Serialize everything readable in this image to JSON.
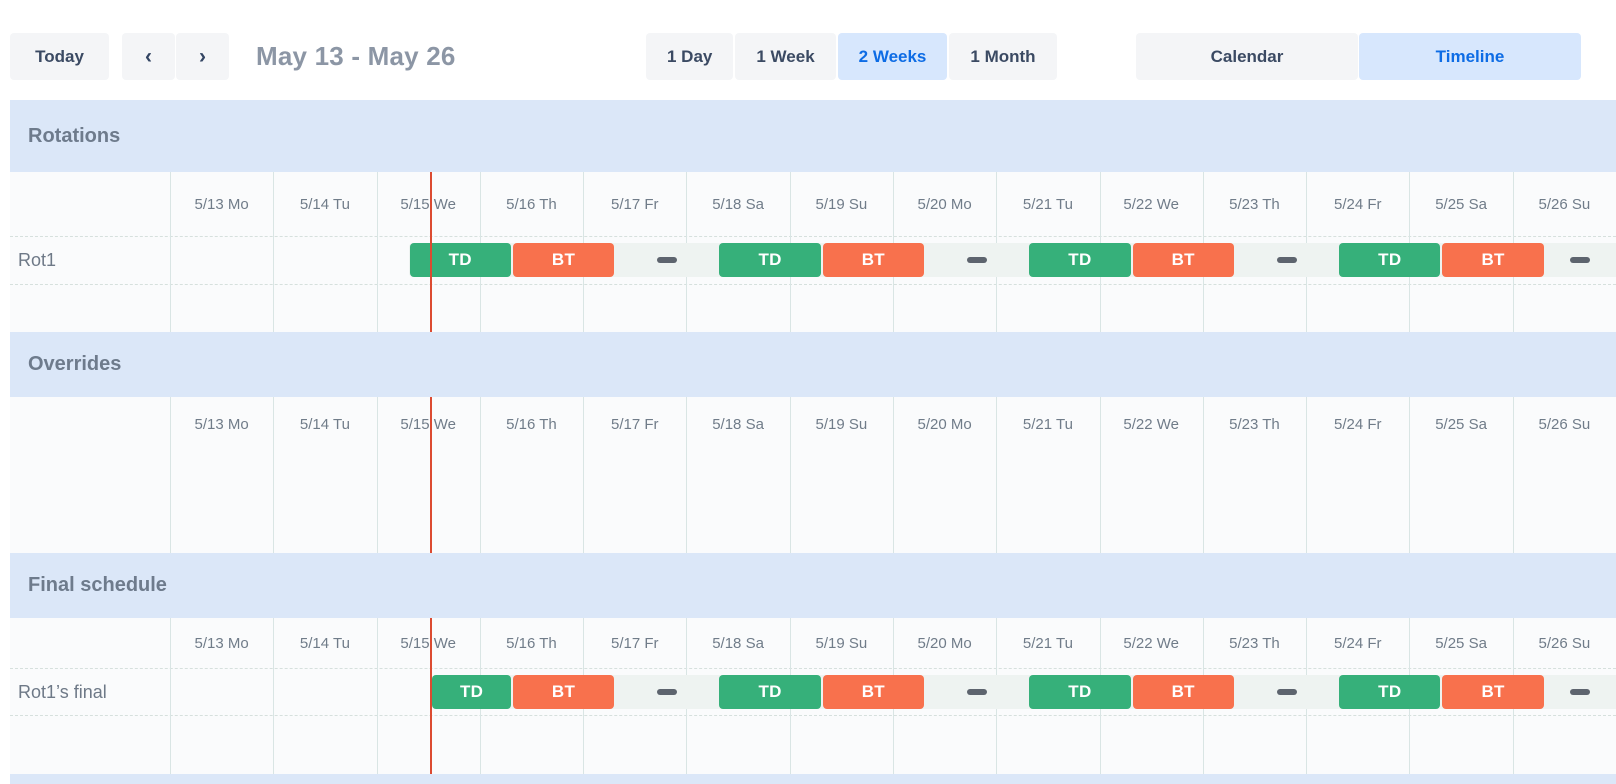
{
  "toolbar": {
    "today": "Today",
    "prev_icon": "‹",
    "next_icon": "›",
    "title": "May 13 - May 26",
    "zoom_options": [
      {
        "label": "1 Day",
        "selected": false
      },
      {
        "label": "1 Week",
        "selected": false
      },
      {
        "label": "2 Weeks",
        "selected": true
      },
      {
        "label": "1 Month",
        "selected": false
      }
    ],
    "view_options": [
      {
        "label": "Calendar",
        "selected": false
      },
      {
        "label": "Timeline",
        "selected": true
      }
    ]
  },
  "colors": {
    "accent_blue": "#0d6ce5",
    "selected_bg": "#d7e7fd",
    "button_bg": "#f4f5f7",
    "button_text": "#3b4a63",
    "section_band": "#dbe7f8",
    "shift_green": "#36b07a",
    "shift_orange": "#f8714d",
    "gap_dash": "#5d646e",
    "now_line": "#dc4b31",
    "oncall_strip": "#eef3f1"
  },
  "timeline": {
    "days": [
      "5/13 Mo",
      "5/14 Tu",
      "5/15 We",
      "5/16 Th",
      "5/17 Fr",
      "5/18 Sa",
      "5/19 Su",
      "5/20 Mo",
      "5/21 Tu",
      "5/22 We",
      "5/23 Th",
      "5/24 Fr",
      "5/25 Sa",
      "5/26 Su"
    ],
    "now_day": 2.53,
    "sections": [
      {
        "title": "Rotations",
        "rows": [
          {
            "label": "Rot1",
            "strip_start": 2.31,
            "segments": [
              {
                "type": "shift",
                "label": "TD",
                "color": "green",
                "start": 2.31,
                "end": 3.31
              },
              {
                "type": "shift",
                "label": "BT",
                "color": "orange",
                "start": 3.31,
                "end": 4.31
              },
              {
                "type": "gap",
                "start": 4.31,
                "end": 5.31
              },
              {
                "type": "shift",
                "label": "TD",
                "color": "green",
                "start": 5.31,
                "end": 6.31
              },
              {
                "type": "shift",
                "label": "BT",
                "color": "orange",
                "start": 6.31,
                "end": 7.31
              },
              {
                "type": "gap",
                "start": 7.31,
                "end": 8.31
              },
              {
                "type": "shift",
                "label": "TD",
                "color": "green",
                "start": 8.31,
                "end": 9.31
              },
              {
                "type": "shift",
                "label": "BT",
                "color": "orange",
                "start": 9.31,
                "end": 10.31
              },
              {
                "type": "gap",
                "start": 10.31,
                "end": 11.31
              },
              {
                "type": "shift",
                "label": "TD",
                "color": "green",
                "start": 11.31,
                "end": 12.31
              },
              {
                "type": "shift",
                "label": "BT",
                "color": "orange",
                "start": 12.31,
                "end": 13.31
              },
              {
                "type": "gap",
                "start": 13.31,
                "end": 14.31
              }
            ]
          }
        ]
      },
      {
        "title": "Overrides",
        "rows": []
      },
      {
        "title": "Final schedule",
        "rows": [
          {
            "label": "Rot1’s final",
            "strip_start": 2.53,
            "segments": [
              {
                "type": "shift",
                "label": "TD",
                "color": "green",
                "start": 2.53,
                "end": 3.31
              },
              {
                "type": "shift",
                "label": "BT",
                "color": "orange",
                "start": 3.31,
                "end": 4.31
              },
              {
                "type": "gap",
                "start": 4.31,
                "end": 5.31
              },
              {
                "type": "shift",
                "label": "TD",
                "color": "green",
                "start": 5.31,
                "end": 6.31
              },
              {
                "type": "shift",
                "label": "BT",
                "color": "orange",
                "start": 6.31,
                "end": 7.31
              },
              {
                "type": "gap",
                "start": 7.31,
                "end": 8.31
              },
              {
                "type": "shift",
                "label": "TD",
                "color": "green",
                "start": 8.31,
                "end": 9.31
              },
              {
                "type": "shift",
                "label": "BT",
                "color": "orange",
                "start": 9.31,
                "end": 10.31
              },
              {
                "type": "gap",
                "start": 10.31,
                "end": 11.31
              },
              {
                "type": "shift",
                "label": "TD",
                "color": "green",
                "start": 11.31,
                "end": 12.31
              },
              {
                "type": "shift",
                "label": "BT",
                "color": "orange",
                "start": 12.31,
                "end": 13.31
              },
              {
                "type": "gap",
                "start": 13.31,
                "end": 14.31
              }
            ]
          }
        ]
      }
    ]
  }
}
